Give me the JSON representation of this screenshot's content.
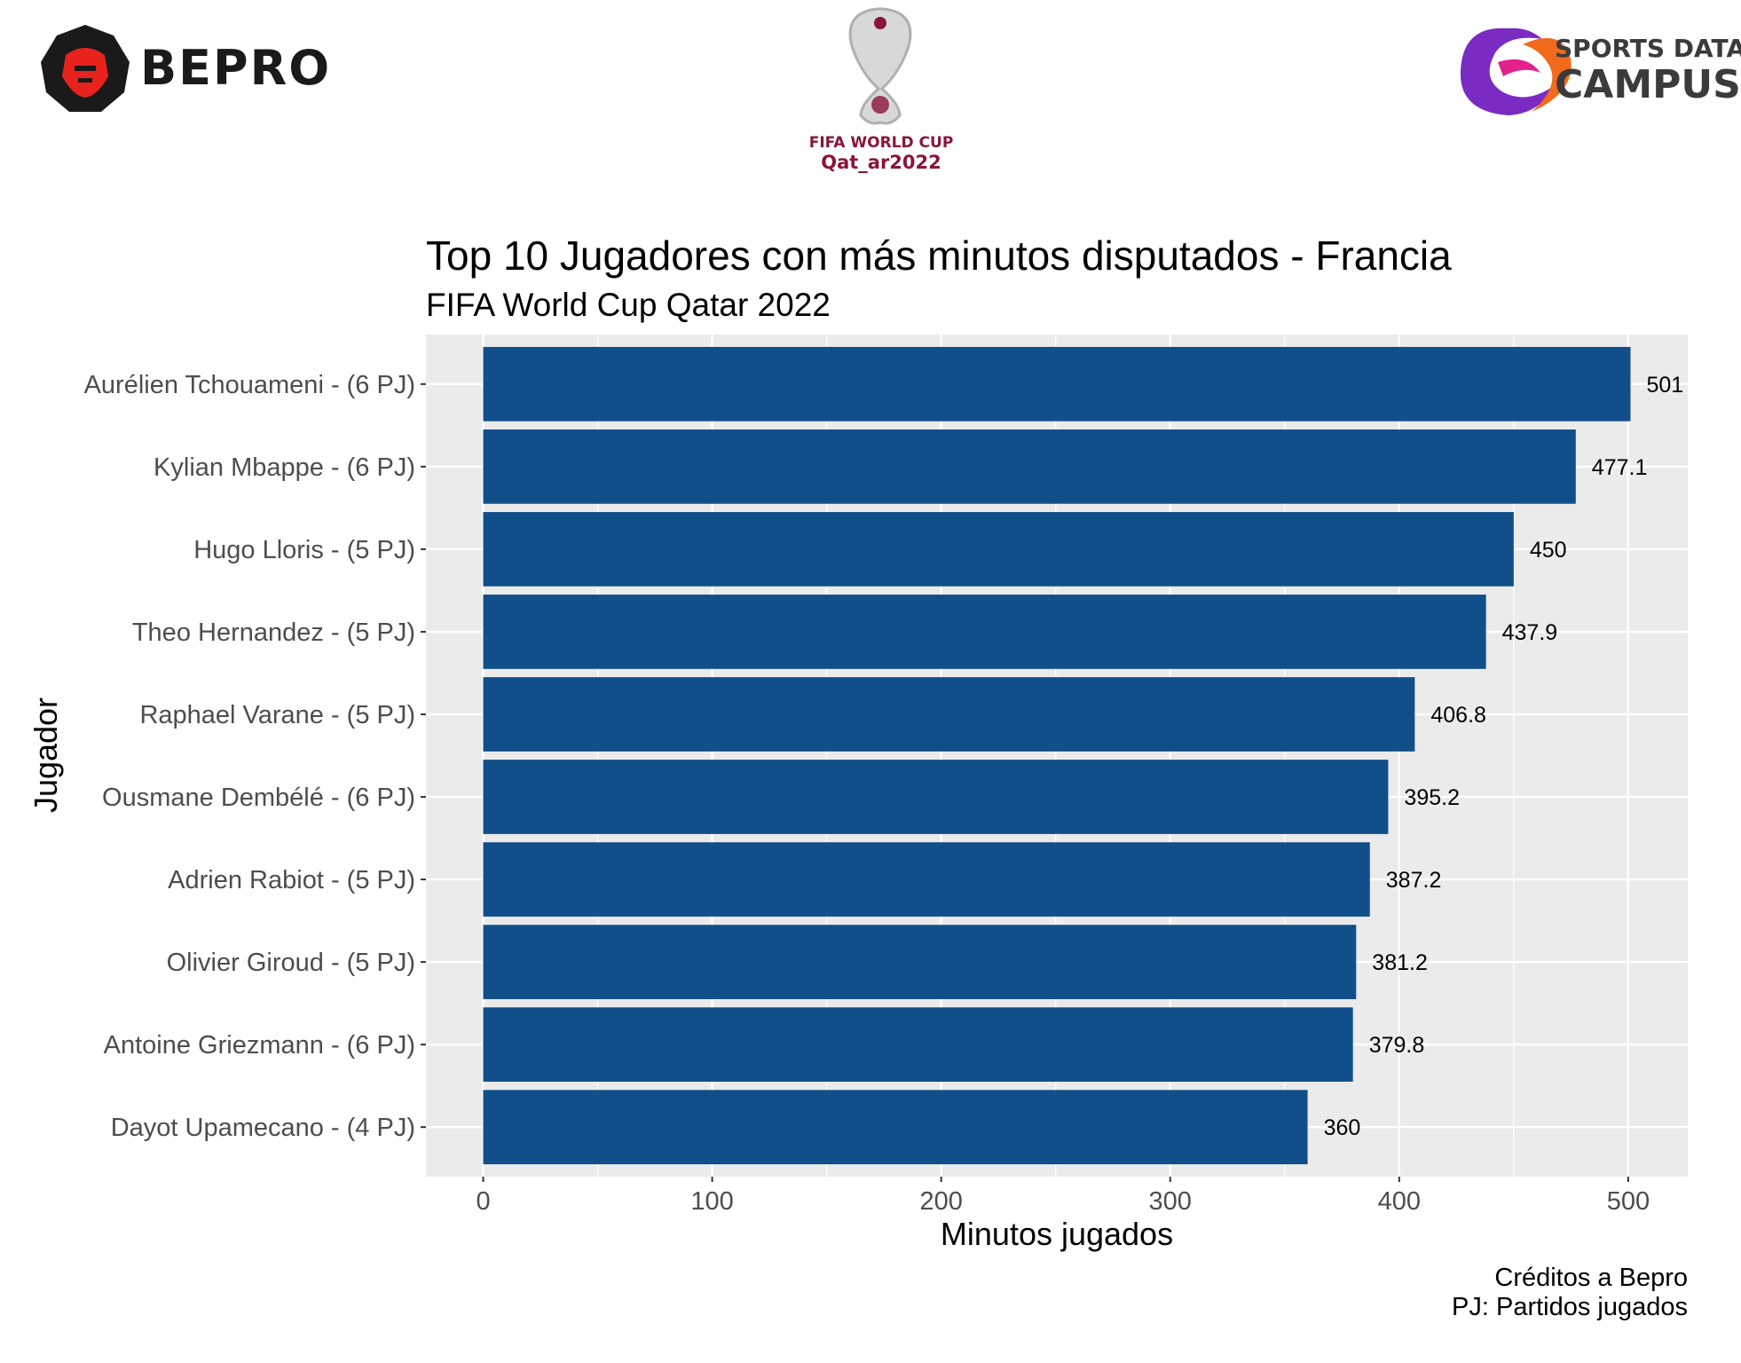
{
  "logos": {
    "bepro": "BEPRO",
    "fifa_line1": "FIFA WORLD CUP",
    "fifa_line2": "Qat_ar2022",
    "sdc_line1": "SPORTS DATA",
    "sdc_line2": "CAMPUS"
  },
  "colors": {
    "bar": "#114F8A",
    "panel": "#EBEBEB",
    "grid": "#FFFFFF",
    "bepro_red": "#E8231E",
    "fifa_maroon": "#8A1538"
  },
  "chart_data": {
    "type": "bar",
    "orientation": "horizontal",
    "title": "Top 10 Jugadores con más minutos disputados - Francia",
    "subtitle": "FIFA World Cup Qatar 2022",
    "xlabel": "Minutos jugados",
    "ylabel": "Jugador",
    "xlim": [
      -25,
      526
    ],
    "xticks": [
      0,
      100,
      200,
      300,
      400,
      500
    ],
    "grid": true,
    "categories": [
      "Aurélien Tchouameni - (6 PJ)",
      "Kylian Mbappe - (6 PJ)",
      "Hugo Lloris - (5 PJ)",
      "Theo Hernandez - (5 PJ)",
      "Raphael Varane - (5 PJ)",
      "Ousmane Dembélé - (6 PJ)",
      "Adrien Rabiot - (5 PJ)",
      "Olivier Giroud - (5 PJ)",
      "Antoine Griezmann - (6 PJ)",
      "Dayot Upamecano - (4 PJ)"
    ],
    "values": [
      501,
      477.1,
      450,
      437.9,
      406.8,
      395.2,
      387.2,
      381.2,
      379.8,
      360
    ],
    "data_labels": [
      "501",
      "477.1",
      "450",
      "437.9",
      "406.8",
      "395.2",
      "387.2",
      "381.2",
      "379.8",
      "360"
    ],
    "caption": [
      "Créditos a Bepro",
      "PJ: Partidos jugados"
    ]
  }
}
